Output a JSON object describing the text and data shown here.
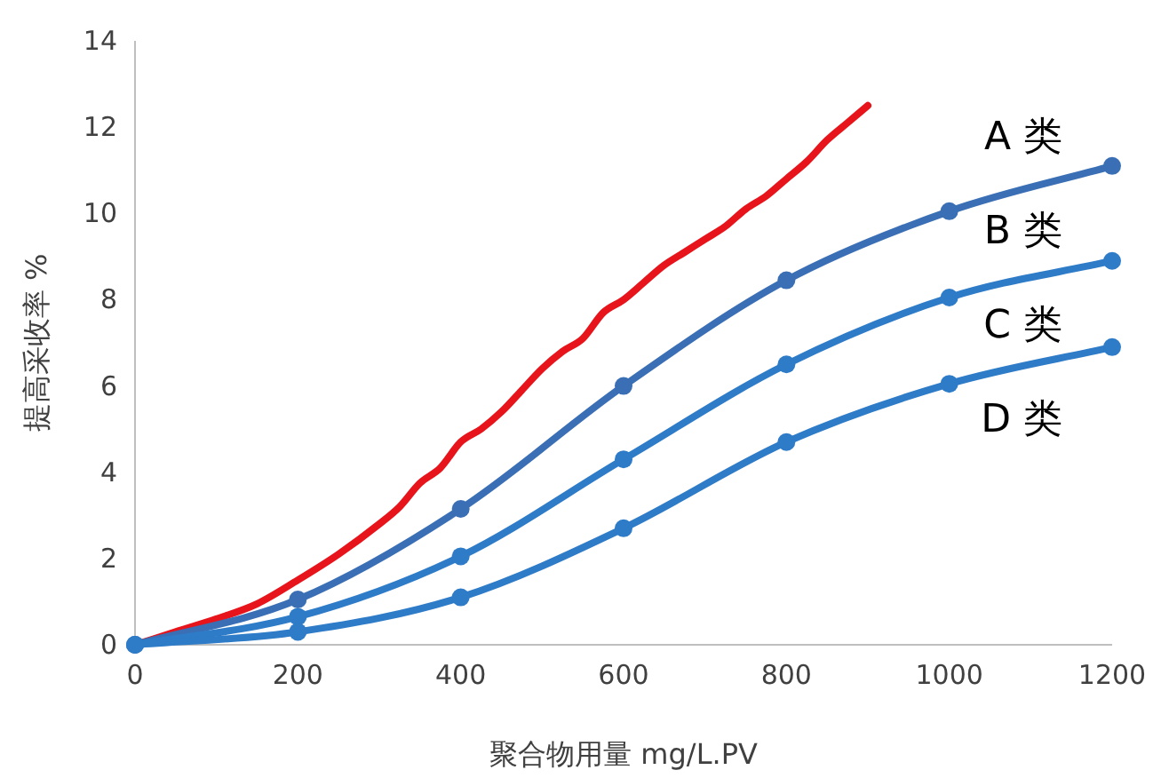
{
  "chart_data": {
    "type": "line",
    "xlabel": "聚合物用量 mg/L.PV",
    "ylabel": "提高采收率 %",
    "xlim": [
      0,
      1200
    ],
    "xticks": [
      0,
      200,
      400,
      600,
      800,
      1000,
      1200
    ],
    "ylim": [
      0,
      14
    ],
    "yticks": [
      0,
      2,
      4,
      6,
      8,
      10,
      12,
      14
    ],
    "grid": false,
    "line_style": "solid",
    "series": [
      {
        "color": "#e8141b",
        "marker": "none",
        "x": [
          0,
          50,
          100,
          150,
          200,
          250,
          300,
          325,
          350,
          375,
          400,
          425,
          450,
          475,
          500,
          525,
          550,
          575,
          600,
          625,
          650,
          675,
          700,
          725,
          750,
          775,
          800,
          825,
          850,
          875,
          900
        ],
        "values": [
          0,
          0.3,
          0.6,
          0.95,
          1.5,
          2.1,
          2.8,
          3.2,
          3.75,
          4.1,
          4.7,
          5.0,
          5.4,
          5.9,
          6.4,
          6.8,
          7.1,
          7.7,
          8.0,
          8.4,
          8.8,
          9.1,
          9.4,
          9.7,
          10.1,
          10.4,
          10.8,
          11.2,
          11.7,
          12.1,
          12.5
        ]
      },
      {
        "color": "#3a6fb5",
        "marker": "circle",
        "x": [
          0,
          200,
          400,
          600,
          800,
          1000,
          1200
        ],
        "values": [
          0,
          1.05,
          3.15,
          6.0,
          8.45,
          10.05,
          11.1
        ]
      },
      {
        "color": "#2e7bc8",
        "marker": "circle",
        "x": [
          0,
          200,
          400,
          600,
          800,
          1000,
          1200
        ],
        "values": [
          0,
          0.65,
          2.05,
          4.3,
          6.5,
          8.05,
          8.9
        ]
      },
      {
        "color": "#2e7bc8",
        "marker": "circle",
        "x": [
          0,
          200,
          400,
          600,
          800,
          1000,
          1200
        ],
        "values": [
          0,
          0.3,
          1.1,
          2.7,
          4.7,
          6.05,
          6.9
        ]
      }
    ],
    "annotations": [
      "A 类",
      "B 类",
      "C 类",
      "D 类"
    ]
  }
}
